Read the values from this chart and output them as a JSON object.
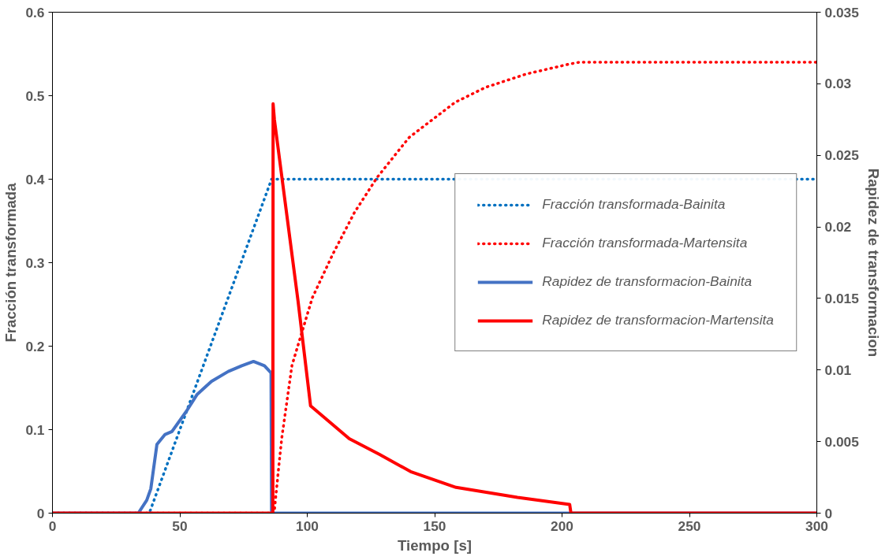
{
  "chart_data": {
    "type": "line",
    "xlabel": "Tiempo [s]",
    "ylabel": "Fracción transformada",
    "y2label": "Rapidez de transformacion",
    "xlim": [
      0,
      300
    ],
    "xticks": [
      0,
      50,
      100,
      150,
      200,
      250,
      300
    ],
    "ylim": [
      0,
      0.6
    ],
    "yticks": [
      0,
      0.1,
      0.2,
      0.3,
      0.4,
      0.5,
      0.6
    ],
    "y2lim": [
      0,
      0.035
    ],
    "y2ticks": [
      0,
      0.005,
      0.01,
      0.015,
      0.02,
      0.025,
      0.03,
      0.035
    ],
    "grid": false,
    "legend": "right",
    "marker": "none",
    "series": [
      {
        "name": "Fracción transformada-Bainita",
        "color": "#0070c0",
        "line_style": "dotted",
        "x": [
          0,
          38,
          86,
          300
        ],
        "values": [
          0,
          0,
          0.4,
          0.4
        ]
      },
      {
        "name": "Fracción transformada-Martensita",
        "color": "#ff0000",
        "line_style": "dotted",
        "x": [
          0,
          87,
          88.8,
          90,
          94,
          102,
          110,
          118.5,
          127.4,
          140,
          158,
          170,
          186,
          203,
          206.6,
          300
        ],
        "values": [
          0,
          0,
          0.055,
          0.09,
          0.177,
          0.258,
          0.31,
          0.36,
          0.402,
          0.45,
          0.492,
          0.51,
          0.526,
          0.538,
          0.54,
          0.54
        ]
      },
      {
        "name": "Rapidez de transformacion-Bainita",
        "color": "#4472c4",
        "line_style": "solid",
        "axis": "y2",
        "x": [
          0,
          33.7,
          37,
          38.6,
          41,
          44.2,
          46.9,
          52.5,
          56.8,
          62.4,
          69,
          74.3,
          78.9,
          83.2,
          85.8,
          86,
          300
        ],
        "values": [
          0,
          0,
          0.0009,
          0.0017,
          0.0048,
          0.0055,
          0.0057,
          0.0071,
          0.0083,
          0.0092,
          0.0099,
          0.0103,
          0.0106,
          0.0103,
          0.0098,
          0,
          0
        ]
      },
      {
        "name": "Rapidez de transformacion-Martensita",
        "color": "#ff0000",
        "line_style": "solid",
        "axis": "y2",
        "x": [
          0,
          86.5,
          86.6,
          87.1,
          96.4,
          101.3,
          116.5,
          128.4,
          140.6,
          158.4,
          182.5,
          203,
          203.5,
          300
        ],
        "values": [
          0,
          0,
          0.0286,
          0.0275,
          0.0148,
          0.0075,
          0.0052,
          0.0041,
          0.0029,
          0.0018,
          0.0011,
          0.0006,
          0,
          0
        ]
      }
    ]
  }
}
